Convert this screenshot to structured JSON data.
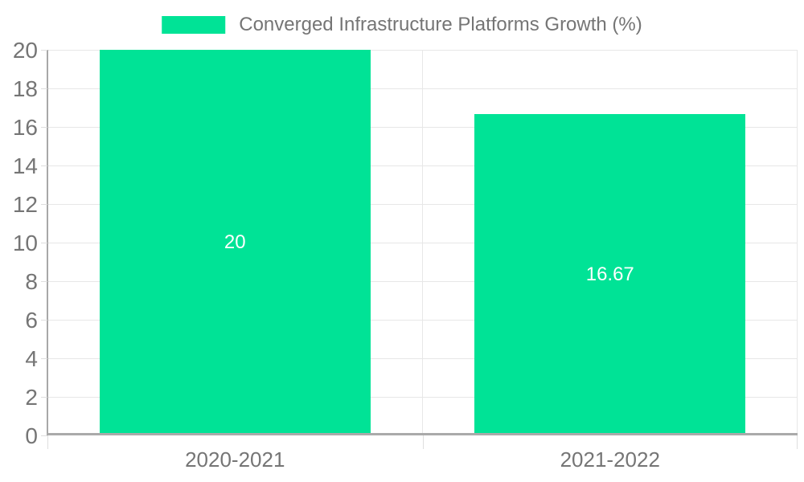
{
  "chart_data": {
    "type": "bar",
    "legend_label": "Converged Infrastructure Platforms Growth (%)",
    "legend_position": "top",
    "categories": [
      "2020-2021",
      "2021-2022"
    ],
    "values": [
      20,
      16.67
    ],
    "bar_value_labels": [
      "20",
      "16.67"
    ],
    "ylim": [
      0,
      20
    ],
    "ytick_step": 2,
    "yticks": [
      0,
      2,
      4,
      6,
      8,
      10,
      12,
      14,
      16,
      18,
      20
    ],
    "grid": true,
    "colors": {
      "bar": "#00E396",
      "bar_label_text": "#ffffff",
      "axis_line": "#aaaaaa",
      "gridline": "#e7e7e7",
      "tick_mark": "#dedede",
      "tick_label_text": "#757575",
      "legend_text": "#757575",
      "background": "#ffffff"
    }
  }
}
